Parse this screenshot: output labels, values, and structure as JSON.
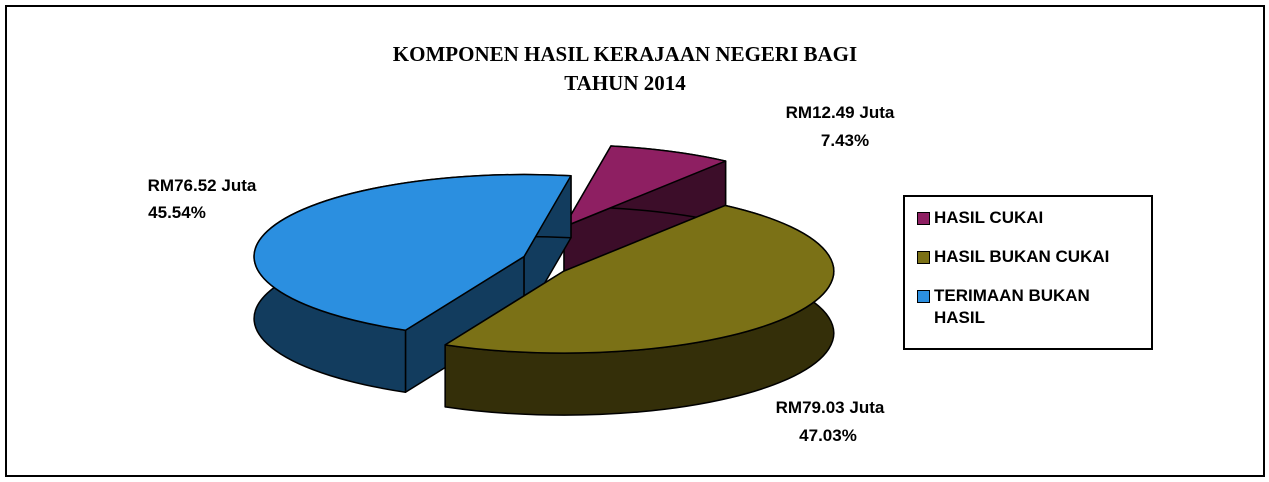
{
  "chart_data": {
    "type": "pie3d",
    "title": "KOMPONEN HASIL KERAJAAN NEGERI BAGI TAHUN 2014",
    "categories": [
      "HASIL CUKAI",
      "HASIL BUKAN CUKAI",
      "TERIMAAN BUKAN HASIL"
    ],
    "values": [
      7.43,
      47.03,
      45.54
    ],
    "value_labels": [
      "7.43%",
      "47.03%",
      "45.54%"
    ],
    "amount_labels": [
      "RM12.49 Juta",
      "RM79.03 Juta",
      "RM76.52 Juta"
    ],
    "colors": [
      "#8e1f62",
      "#7b7116",
      "#2b8fe0"
    ],
    "legend": "right"
  }
}
